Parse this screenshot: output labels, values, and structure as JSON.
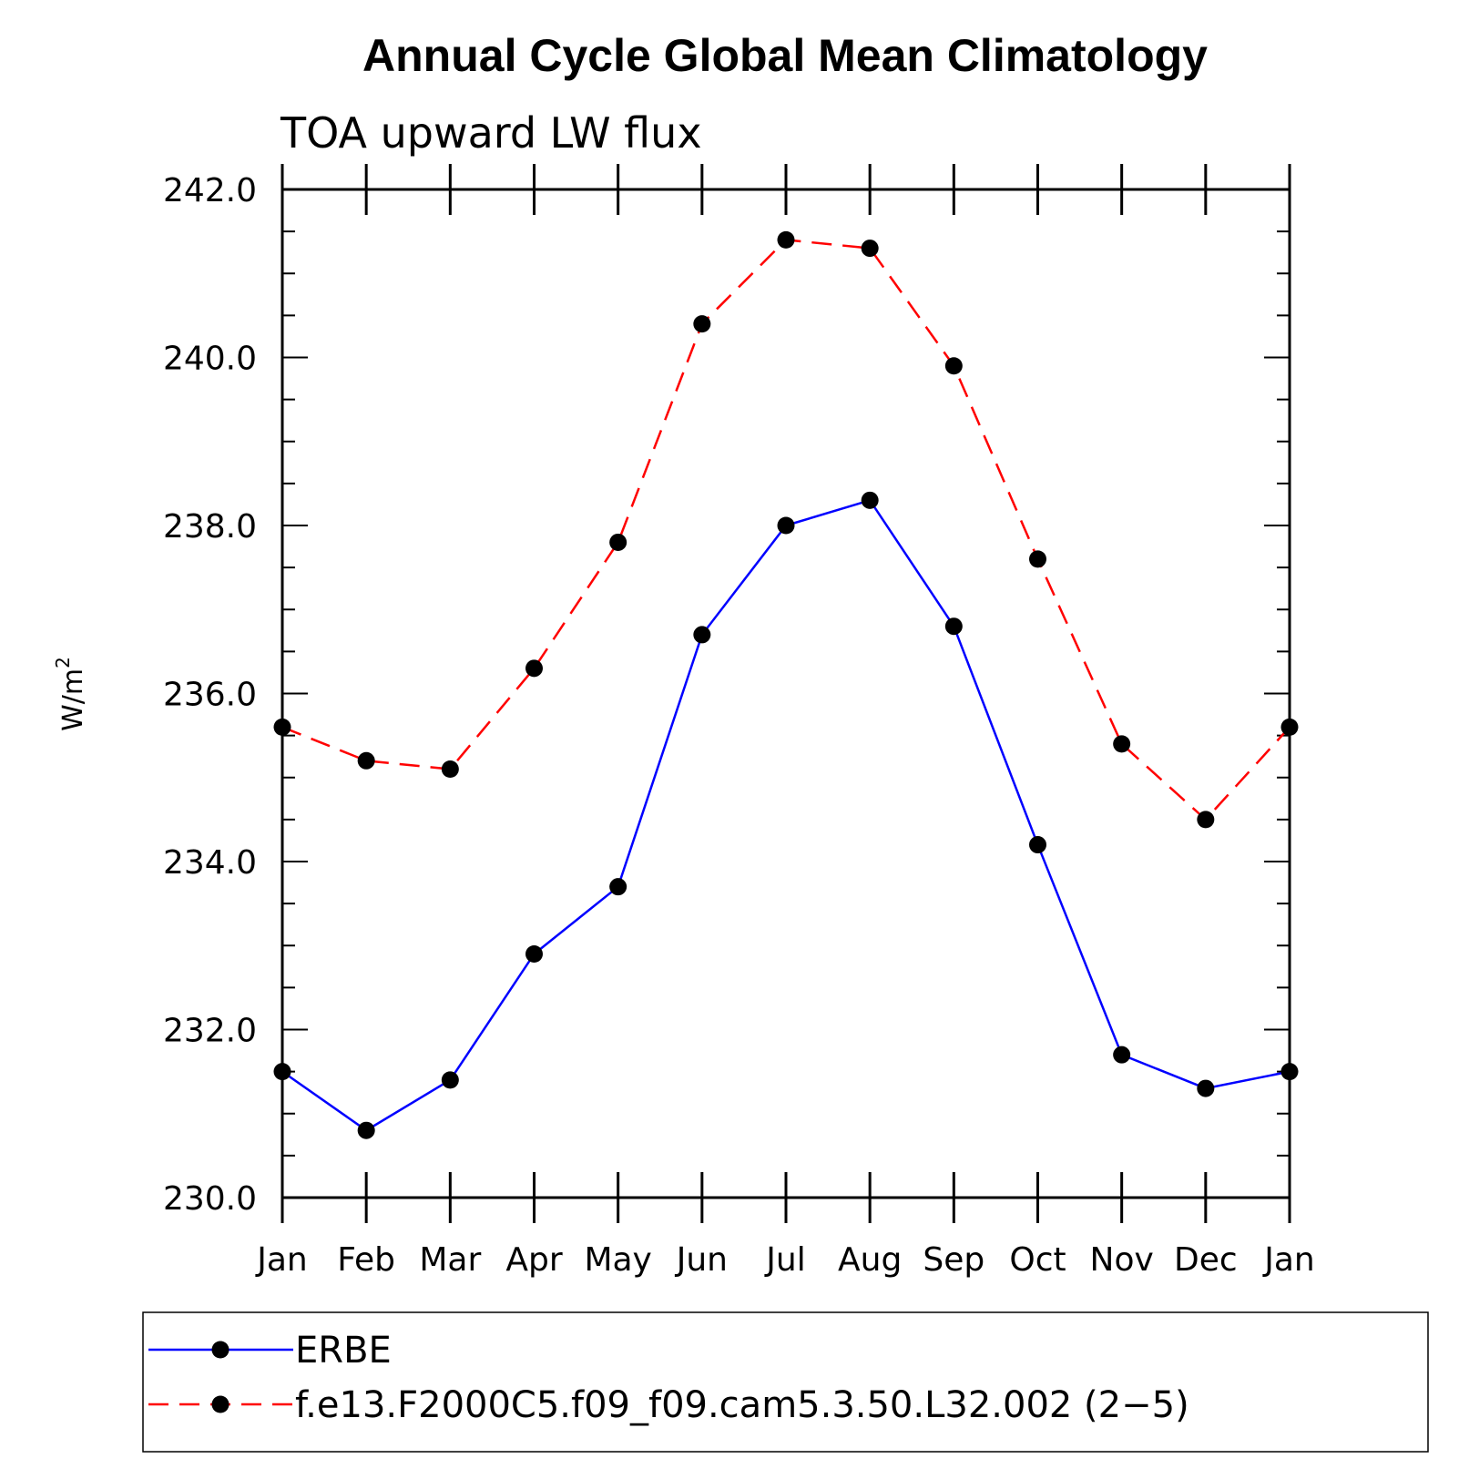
{
  "chart_data": {
    "type": "line",
    "title": "Annual Cycle Global Mean Climatology",
    "subtitle": "TOA upward LW flux",
    "ylabel": "W/m",
    "ylabel_superscript": "2",
    "ylim": [
      230.0,
      242.0
    ],
    "y_ticks": [
      "230.0",
      "232.0",
      "234.0",
      "236.0",
      "238.0",
      "240.0",
      "242.0"
    ],
    "categories": [
      "Jan",
      "Feb",
      "Mar",
      "Apr",
      "May",
      "Jun",
      "Jul",
      "Aug",
      "Sep",
      "Oct",
      "Nov",
      "Dec",
      "Jan"
    ],
    "series": [
      {
        "name": "ERBE",
        "color": "#0000ff",
        "dash": "solid",
        "values": [
          231.5,
          230.8,
          231.4,
          232.9,
          233.7,
          236.7,
          238.0,
          238.3,
          236.8,
          234.2,
          231.7,
          231.3,
          231.5
        ]
      },
      {
        "name": "f.e13.F2000C5.f09_f09.cam5.3.50.L32.002 (2−5)",
        "color": "#ff0000",
        "dash": "dashed",
        "values": [
          235.6,
          235.2,
          235.1,
          236.3,
          237.8,
          240.4,
          241.4,
          241.3,
          239.9,
          237.6,
          235.4,
          234.5,
          235.6
        ]
      }
    ],
    "marker_color": "#000000",
    "legend_position": "bottom"
  }
}
